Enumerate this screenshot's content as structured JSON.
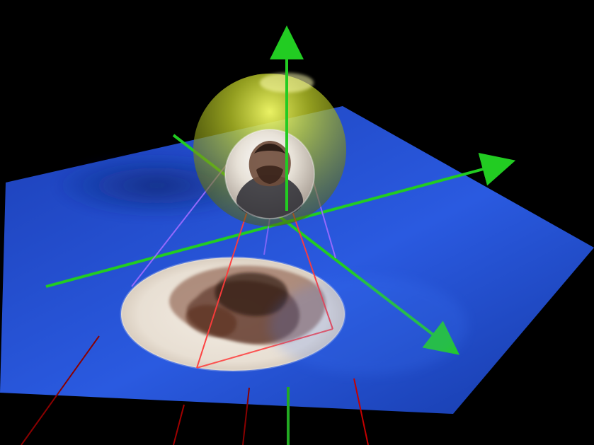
{
  "scene": {
    "background_color": "#000000",
    "plane_color": "#1f47c9",
    "plane_edge_color": "#163aa8",
    "axis_color": "#22cc22",
    "sphere_outer_color": "#a8c21a",
    "projection_line_color_red": "#ff3b3b",
    "projection_line_color_violet": "#9a6bff",
    "portrait_tones": [
      "#f4efe6",
      "#c9b9a4",
      "#6b3b2a",
      "#2a1a14"
    ],
    "objects": [
      "ground-plane",
      "vertical-axis",
      "horizontal-axis-1",
      "horizontal-axis-2",
      "outer-translucent-sphere",
      "inner-portrait-sphere",
      "projected-ellipse-image",
      "projection-lines"
    ]
  }
}
